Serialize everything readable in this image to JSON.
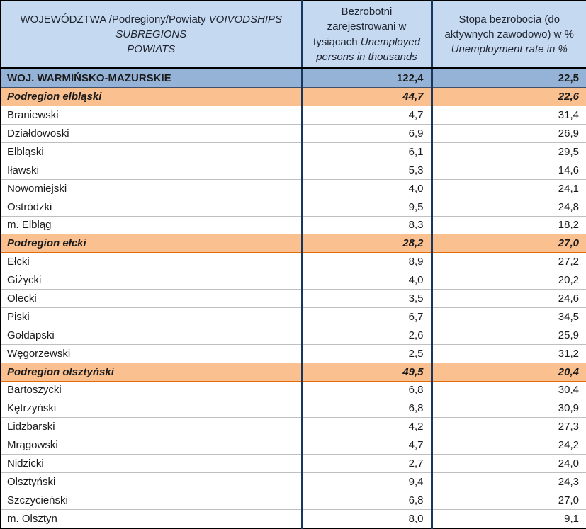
{
  "table": {
    "header": {
      "col1": {
        "line1_regular": "WOJEWÓDZTWA /Podregiony/Powiaty",
        "line1_italic": "VOIVODSHIPS",
        "line2": "SUBREGIONS",
        "line3": "POWIATS"
      },
      "col2": {
        "regular": "Bezrobotni zarejestrowani  w tysiącach",
        "italic": "Unemployed persons in thousands"
      },
      "col3": {
        "regular": "Stopa bezrobocia  (do aktywnych zawodowo) w %",
        "italic": "Unemployment rate in  %"
      }
    },
    "rows": [
      {
        "type": "voivodship",
        "name": "WOJ. WARMIŃSKO-MAZURSKIE",
        "unemployed": "122,4",
        "rate": "22,5"
      },
      {
        "type": "subregion",
        "name": "Podregion elbląski",
        "unemployed": "44,7",
        "rate": "22,6"
      },
      {
        "type": "powiat",
        "name": "Braniewski",
        "unemployed": "4,7",
        "rate": "31,4"
      },
      {
        "type": "powiat",
        "name": "Działdowoski",
        "unemployed": "6,9",
        "rate": "26,9"
      },
      {
        "type": "powiat",
        "name": "Elbląski",
        "unemployed": "6,1",
        "rate": "29,5"
      },
      {
        "type": "powiat",
        "name": "Iławski",
        "unemployed": "5,3",
        "rate": "14,6"
      },
      {
        "type": "powiat",
        "name": "Nowomiejski",
        "unemployed": "4,0",
        "rate": "24,1"
      },
      {
        "type": "powiat",
        "name": "Ostródzki",
        "unemployed": "9,5",
        "rate": "24,8"
      },
      {
        "type": "powiat",
        "name": "m. Elbląg",
        "unemployed": "8,3",
        "rate": "18,2"
      },
      {
        "type": "subregion",
        "name": "Podregion ełcki",
        "unemployed": "28,2",
        "rate": "27,0"
      },
      {
        "type": "powiat",
        "name": "Ełcki",
        "unemployed": "8,9",
        "rate": "27,2"
      },
      {
        "type": "powiat",
        "name": "Giżycki",
        "unemployed": "4,0",
        "rate": "20,2"
      },
      {
        "type": "powiat",
        "name": "Olecki",
        "unemployed": "3,5",
        "rate": "24,6"
      },
      {
        "type": "powiat",
        "name": "Piski",
        "unemployed": "6,7",
        "rate": "34,5"
      },
      {
        "type": "powiat",
        "name": "Gołdapski",
        "unemployed": "2,6",
        "rate": "25,9"
      },
      {
        "type": "powiat",
        "name": "Węgorzewski",
        "unemployed": "2,5",
        "rate": "31,2"
      },
      {
        "type": "subregion",
        "name": "Podregion olsztyński",
        "unemployed": "49,5",
        "rate": "20,4"
      },
      {
        "type": "powiat",
        "name": "Bartoszycki",
        "unemployed": "6,8",
        "rate": "30,4"
      },
      {
        "type": "powiat",
        "name": "Kętrzyński",
        "unemployed": "6,8",
        "rate": "30,9"
      },
      {
        "type": "powiat",
        "name": "Lidzbarski",
        "unemployed": "4,2",
        "rate": "27,3"
      },
      {
        "type": "powiat",
        "name": "Mrągowski",
        "unemployed": "4,7",
        "rate": "24,2"
      },
      {
        "type": "powiat",
        "name": "Nidzicki",
        "unemployed": "2,7",
        "rate": "24,0"
      },
      {
        "type": "powiat",
        "name": "Olsztyński",
        "unemployed": "9,4",
        "rate": "24,3"
      },
      {
        "type": "powiat",
        "name": "Szczycieński",
        "unemployed": "6,8",
        "rate": "27,0"
      },
      {
        "type": "powiat",
        "name": "m. Olsztyn",
        "unemployed": "8,0",
        "rate": "9,1"
      }
    ]
  },
  "colors": {
    "header_bg": "#C5D9F1",
    "voivodship_row_bg": "#95B3D7",
    "subregion_row_bg": "#FAC090",
    "subregion_border": "#E26B0A",
    "column_divider": "#17375E",
    "row_divider": "#BFBFBF",
    "outer_border": "#000000"
  }
}
